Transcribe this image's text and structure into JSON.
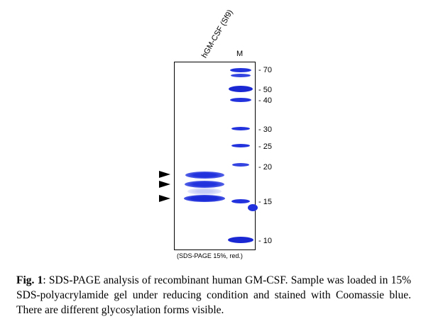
{
  "figure": {
    "lane_labels": {
      "sample": "hGM-CSF (Sf9)",
      "marker": "M"
    },
    "marker_sizes_kda": [
      "70",
      "50",
      "40",
      "30",
      "25",
      "20",
      "15",
      "10"
    ],
    "gel_note": "(SDS-PAGE 15%, red.)",
    "sample_band_count": 3,
    "colors": {
      "band": "#2233dd",
      "band_light": "#6677ee",
      "frame": "#000000"
    }
  },
  "caption": {
    "label": "Fig. 1",
    "text": ": SDS-PAGE analysis of recombinant human GM-CSF. Sample was loaded in 15% SDS-polyacrylamide gel under reducing condition and stained with Coomassie blue. There are different glycosylation forms visible."
  }
}
